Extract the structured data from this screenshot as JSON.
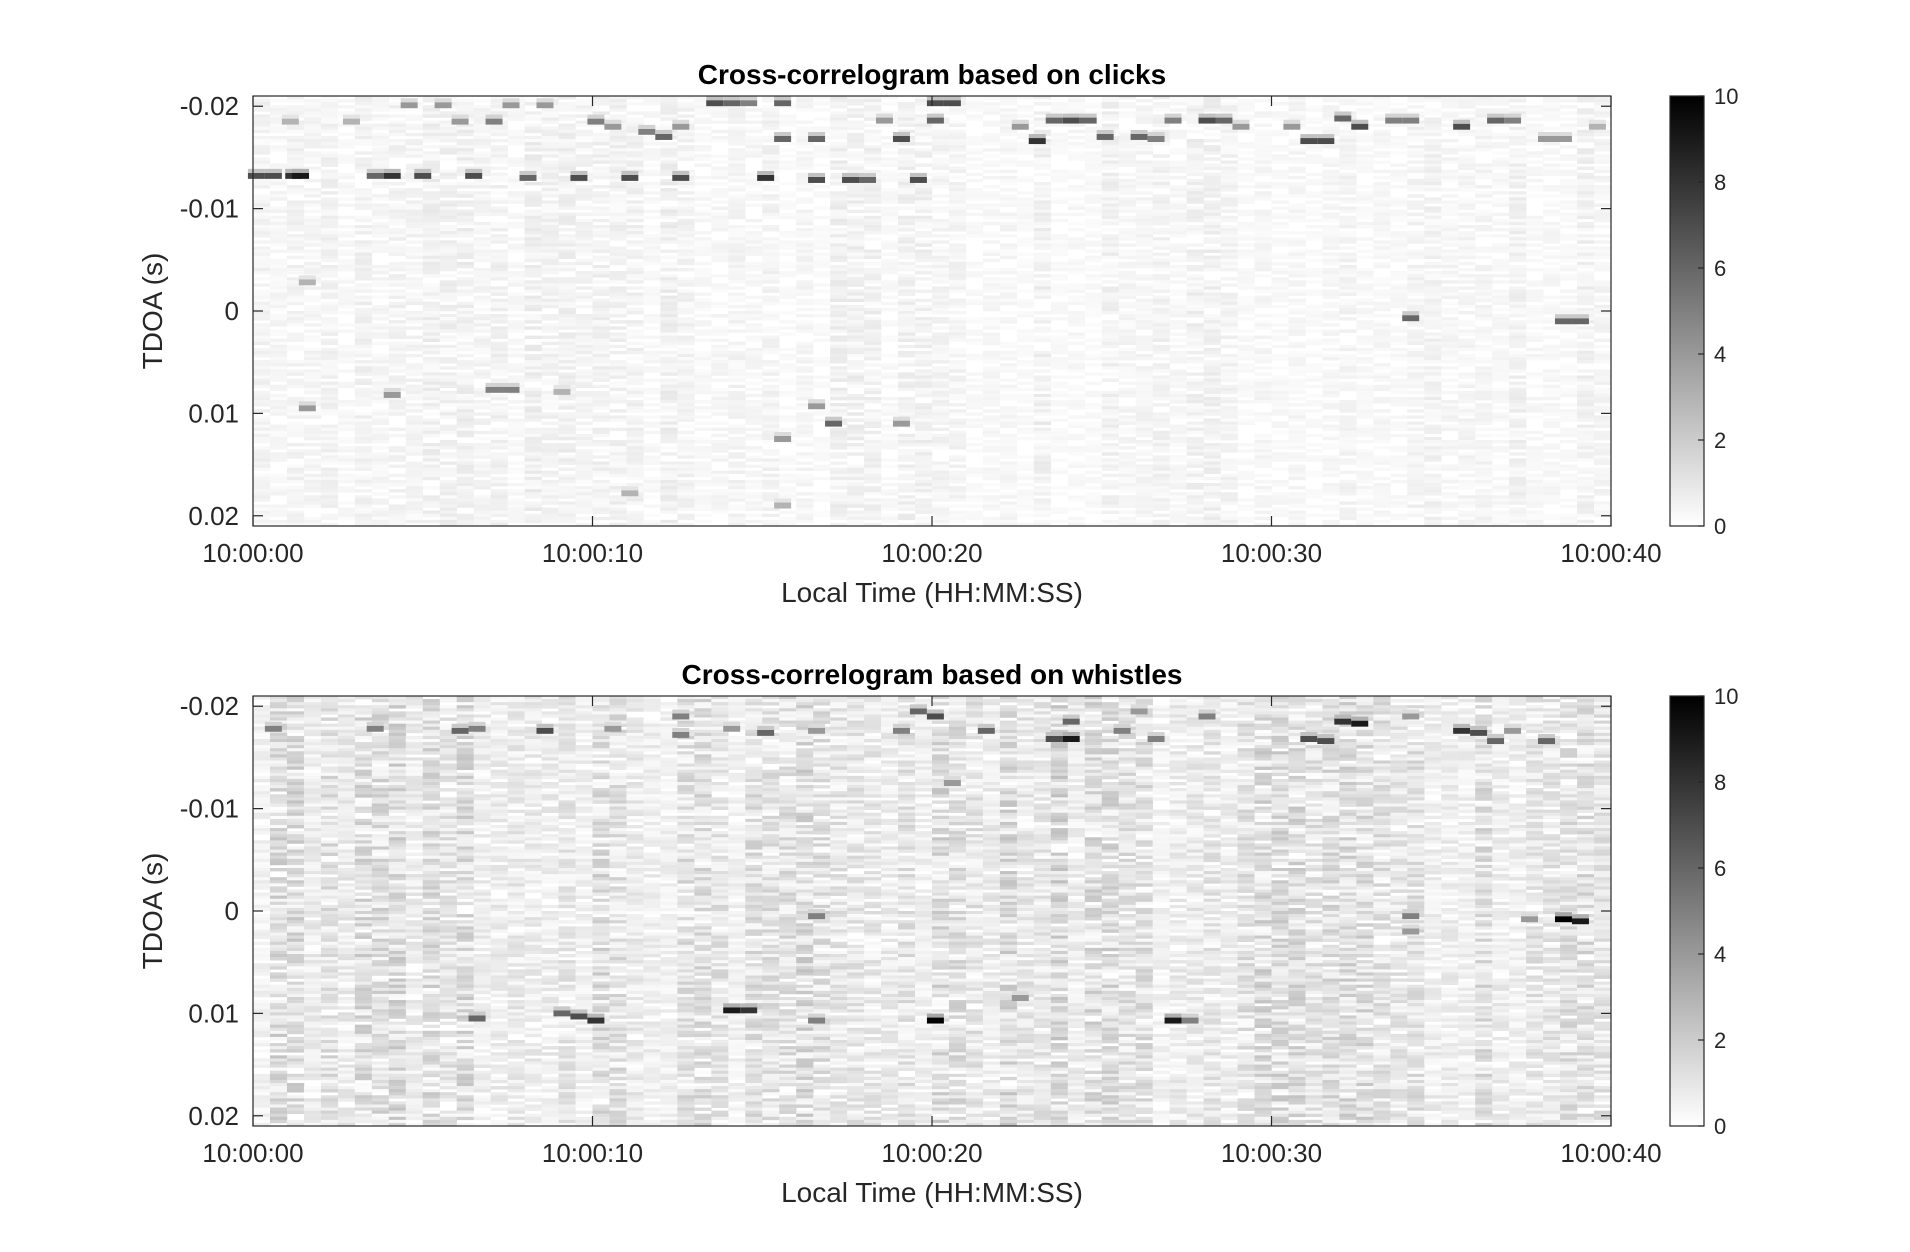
{
  "chart_data": [
    {
      "type": "heatmap",
      "title": "Cross-correlogram based on clicks",
      "xlabel": "Local Time (HH:MM:SS)",
      "ylabel": "TDOA (s)",
      "x_ticks": [
        "10:00:00",
        "10:00:10",
        "10:00:20",
        "10:00:30",
        "10:00:40"
      ],
      "x_range_seconds": [
        0,
        40
      ],
      "y_ticks": [
        "-0.02",
        "-0.01",
        "0",
        "0.01",
        "0.02"
      ],
      "ylim": [
        -0.021,
        0.021
      ],
      "y_reversed": true,
      "colormap": "gray-inverted",
      "colorbar": {
        "ticks": [
          "0",
          "2",
          "4",
          "6",
          "8",
          "10"
        ],
        "range": [
          0,
          10
        ]
      },
      "background_intensity": 0.4,
      "hotspots": [
        {
          "t": 0.1,
          "tdoa": -0.0132,
          "v": 7
        },
        {
          "t": 0.6,
          "tdoa": -0.0132,
          "v": 7
        },
        {
          "t": 1.2,
          "tdoa": -0.0132,
          "v": 8
        },
        {
          "t": 1.4,
          "tdoa": -0.0132,
          "v": 9
        },
        {
          "t": 3.6,
          "tdoa": -0.0132,
          "v": 6
        },
        {
          "t": 4.1,
          "tdoa": -0.0132,
          "v": 8
        },
        {
          "t": 5.0,
          "tdoa": -0.0132,
          "v": 7
        },
        {
          "t": 6.5,
          "tdoa": -0.0132,
          "v": 7
        },
        {
          "t": 8.1,
          "tdoa": -0.013,
          "v": 6
        },
        {
          "t": 9.6,
          "tdoa": -0.013,
          "v": 7
        },
        {
          "t": 11.1,
          "tdoa": -0.013,
          "v": 7
        },
        {
          "t": 12.6,
          "tdoa": -0.013,
          "v": 7
        },
        {
          "t": 15.1,
          "tdoa": -0.013,
          "v": 8
        },
        {
          "t": 16.6,
          "tdoa": -0.0128,
          "v": 7
        },
        {
          "t": 17.6,
          "tdoa": -0.0128,
          "v": 7
        },
        {
          "t": 18.1,
          "tdoa": -0.0128,
          "v": 6
        },
        {
          "t": 19.6,
          "tdoa": -0.0128,
          "v": 7
        },
        {
          "t": 1.1,
          "tdoa": -0.0185,
          "v": 3
        },
        {
          "t": 2.9,
          "tdoa": -0.0185,
          "v": 3
        },
        {
          "t": 4.6,
          "tdoa": -0.0201,
          "v": 4
        },
        {
          "t": 5.6,
          "tdoa": -0.0201,
          "v": 4
        },
        {
          "t": 6.1,
          "tdoa": -0.0185,
          "v": 4
        },
        {
          "t": 7.1,
          "tdoa": -0.0185,
          "v": 5
        },
        {
          "t": 7.6,
          "tdoa": -0.0201,
          "v": 4
        },
        {
          "t": 8.6,
          "tdoa": -0.0201,
          "v": 4
        },
        {
          "t": 10.1,
          "tdoa": -0.0185,
          "v": 5
        },
        {
          "t": 10.6,
          "tdoa": -0.018,
          "v": 4
        },
        {
          "t": 11.6,
          "tdoa": -0.0175,
          "v": 5
        },
        {
          "t": 12.1,
          "tdoa": -0.017,
          "v": 6
        },
        {
          "t": 12.6,
          "tdoa": -0.018,
          "v": 4
        },
        {
          "t": 13.6,
          "tdoa": -0.0203,
          "v": 7
        },
        {
          "t": 14.1,
          "tdoa": -0.0203,
          "v": 6
        },
        {
          "t": 14.6,
          "tdoa": -0.0203,
          "v": 5
        },
        {
          "t": 15.6,
          "tdoa": -0.0203,
          "v": 6
        },
        {
          "t": 15.6,
          "tdoa": -0.0168,
          "v": 6
        },
        {
          "t": 16.6,
          "tdoa": -0.0168,
          "v": 6
        },
        {
          "t": 18.6,
          "tdoa": -0.0186,
          "v": 4
        },
        {
          "t": 19.1,
          "tdoa": -0.0168,
          "v": 7
        },
        {
          "t": 20.1,
          "tdoa": -0.0203,
          "v": 7
        },
        {
          "t": 20.6,
          "tdoa": -0.0203,
          "v": 7
        },
        {
          "t": 20.1,
          "tdoa": -0.0186,
          "v": 6
        },
        {
          "t": 22.6,
          "tdoa": -0.018,
          "v": 4
        },
        {
          "t": 23.1,
          "tdoa": -0.0166,
          "v": 8
        },
        {
          "t": 23.6,
          "tdoa": -0.0186,
          "v": 6
        },
        {
          "t": 24.1,
          "tdoa": -0.0186,
          "v": 7
        },
        {
          "t": 24.6,
          "tdoa": -0.0186,
          "v": 6
        },
        {
          "t": 25.1,
          "tdoa": -0.017,
          "v": 6
        },
        {
          "t": 26.1,
          "tdoa": -0.017,
          "v": 6
        },
        {
          "t": 26.6,
          "tdoa": -0.0168,
          "v": 5
        },
        {
          "t": 27.1,
          "tdoa": -0.0186,
          "v": 5
        },
        {
          "t": 28.1,
          "tdoa": -0.0186,
          "v": 7
        },
        {
          "t": 28.6,
          "tdoa": -0.0186,
          "v": 6
        },
        {
          "t": 29.1,
          "tdoa": -0.018,
          "v": 4
        },
        {
          "t": 30.6,
          "tdoa": -0.018,
          "v": 4
        },
        {
          "t": 31.1,
          "tdoa": -0.0166,
          "v": 7
        },
        {
          "t": 31.6,
          "tdoa": -0.0166,
          "v": 7
        },
        {
          "t": 32.1,
          "tdoa": -0.0188,
          "v": 6
        },
        {
          "t": 32.6,
          "tdoa": -0.018,
          "v": 7
        },
        {
          "t": 33.6,
          "tdoa": -0.0186,
          "v": 5
        },
        {
          "t": 34.1,
          "tdoa": -0.0186,
          "v": 5
        },
        {
          "t": 35.6,
          "tdoa": -0.018,
          "v": 7
        },
        {
          "t": 36.6,
          "tdoa": -0.0186,
          "v": 6
        },
        {
          "t": 37.1,
          "tdoa": -0.0186,
          "v": 5
        },
        {
          "t": 38.1,
          "tdoa": -0.0168,
          "v": 4
        },
        {
          "t": 38.6,
          "tdoa": -0.0168,
          "v": 4
        },
        {
          "t": 39.6,
          "tdoa": -0.018,
          "v": 3
        },
        {
          "t": 1.6,
          "tdoa": -0.0028,
          "v": 3
        },
        {
          "t": 1.6,
          "tdoa": 0.0095,
          "v": 4
        },
        {
          "t": 4.1,
          "tdoa": 0.0082,
          "v": 4
        },
        {
          "t": 7.1,
          "tdoa": 0.0077,
          "v": 5
        },
        {
          "t": 7.6,
          "tdoa": 0.0077,
          "v": 5
        },
        {
          "t": 9.1,
          "tdoa": 0.0079,
          "v": 3
        },
        {
          "t": 11.1,
          "tdoa": 0.0178,
          "v": 3
        },
        {
          "t": 15.6,
          "tdoa": 0.0125,
          "v": 4
        },
        {
          "t": 16.6,
          "tdoa": 0.0093,
          "v": 4
        },
        {
          "t": 17.1,
          "tdoa": 0.011,
          "v": 6
        },
        {
          "t": 19.1,
          "tdoa": 0.011,
          "v": 4
        },
        {
          "t": 15.6,
          "tdoa": 0.019,
          "v": 3
        },
        {
          "t": 34.1,
          "tdoa": 0.0007,
          "v": 6
        },
        {
          "t": 38.6,
          "tdoa": 0.001,
          "v": 6
        },
        {
          "t": 39.1,
          "tdoa": 0.001,
          "v": 6
        }
      ]
    },
    {
      "type": "heatmap",
      "title": "Cross-correlogram based on whistles",
      "xlabel": "Local Time (HH:MM:SS)",
      "ylabel": "TDOA (s)",
      "x_ticks": [
        "10:00:00",
        "10:00:10",
        "10:00:20",
        "10:00:30",
        "10:00:40"
      ],
      "x_range_seconds": [
        0,
        40
      ],
      "y_ticks": [
        "-0.02",
        "-0.01",
        "0",
        "0.01",
        "0.02"
      ],
      "ylim": [
        -0.021,
        0.021
      ],
      "y_reversed": true,
      "colormap": "gray-inverted",
      "colorbar": {
        "ticks": [
          "0",
          "2",
          "4",
          "6",
          "8",
          "10"
        ],
        "range": [
          0,
          10
        ]
      },
      "background_intensity": 1.1,
      "hotspots": [
        {
          "t": 0.6,
          "tdoa": -0.0178,
          "v": 5
        },
        {
          "t": 3.6,
          "tdoa": -0.0178,
          "v": 5
        },
        {
          "t": 6.1,
          "tdoa": -0.0176,
          "v": 6
        },
        {
          "t": 6.6,
          "tdoa": -0.0178,
          "v": 5
        },
        {
          "t": 8.6,
          "tdoa": -0.0176,
          "v": 7
        },
        {
          "t": 10.6,
          "tdoa": -0.0178,
          "v": 4
        },
        {
          "t": 12.6,
          "tdoa": -0.019,
          "v": 5
        },
        {
          "t": 12.6,
          "tdoa": -0.0172,
          "v": 5
        },
        {
          "t": 14.1,
          "tdoa": -0.0178,
          "v": 4
        },
        {
          "t": 15.1,
          "tdoa": -0.0174,
          "v": 6
        },
        {
          "t": 16.6,
          "tdoa": -0.0176,
          "v": 4
        },
        {
          "t": 19.1,
          "tdoa": -0.0176,
          "v": 5
        },
        {
          "t": 19.6,
          "tdoa": -0.0195,
          "v": 6
        },
        {
          "t": 20.1,
          "tdoa": -0.019,
          "v": 7
        },
        {
          "t": 20.6,
          "tdoa": -0.0125,
          "v": 4
        },
        {
          "t": 21.6,
          "tdoa": -0.0176,
          "v": 6
        },
        {
          "t": 23.6,
          "tdoa": -0.0168,
          "v": 7
        },
        {
          "t": 24.1,
          "tdoa": -0.0168,
          "v": 9
        },
        {
          "t": 24.1,
          "tdoa": -0.0185,
          "v": 6
        },
        {
          "t": 25.6,
          "tdoa": -0.0176,
          "v": 5
        },
        {
          "t": 26.1,
          "tdoa": -0.0195,
          "v": 4
        },
        {
          "t": 26.6,
          "tdoa": -0.0168,
          "v": 5
        },
        {
          "t": 28.1,
          "tdoa": -0.019,
          "v": 5
        },
        {
          "t": 31.1,
          "tdoa": -0.0168,
          "v": 7
        },
        {
          "t": 31.6,
          "tdoa": -0.0166,
          "v": 7
        },
        {
          "t": 32.1,
          "tdoa": -0.0185,
          "v": 8
        },
        {
          "t": 32.6,
          "tdoa": -0.0183,
          "v": 9
        },
        {
          "t": 34.1,
          "tdoa": -0.019,
          "v": 4
        },
        {
          "t": 35.6,
          "tdoa": -0.0176,
          "v": 8
        },
        {
          "t": 36.1,
          "tdoa": -0.0174,
          "v": 7
        },
        {
          "t": 36.6,
          "tdoa": -0.0166,
          "v": 6
        },
        {
          "t": 37.1,
          "tdoa": -0.0176,
          "v": 4
        },
        {
          "t": 38.1,
          "tdoa": -0.0166,
          "v": 6
        },
        {
          "t": 6.6,
          "tdoa": 0.0105,
          "v": 6
        },
        {
          "t": 9.1,
          "tdoa": 0.01,
          "v": 6
        },
        {
          "t": 9.6,
          "tdoa": 0.0103,
          "v": 7
        },
        {
          "t": 10.1,
          "tdoa": 0.0107,
          "v": 8
        },
        {
          "t": 14.1,
          "tdoa": 0.0097,
          "v": 9
        },
        {
          "t": 14.6,
          "tdoa": 0.0097,
          "v": 8
        },
        {
          "t": 16.6,
          "tdoa": 0.0107,
          "v": 5
        },
        {
          "t": 16.6,
          "tdoa": 0.0005,
          "v": 5
        },
        {
          "t": 20.1,
          "tdoa": 0.0107,
          "v": 10
        },
        {
          "t": 22.6,
          "tdoa": 0.0085,
          "v": 4
        },
        {
          "t": 27.1,
          "tdoa": 0.0107,
          "v": 9
        },
        {
          "t": 27.6,
          "tdoa": 0.0107,
          "v": 5
        },
        {
          "t": 34.1,
          "tdoa": 0.0005,
          "v": 5
        },
        {
          "t": 34.1,
          "tdoa": 0.002,
          "v": 4
        },
        {
          "t": 37.6,
          "tdoa": 0.0008,
          "v": 4
        },
        {
          "t": 38.6,
          "tdoa": 0.0008,
          "v": 10
        },
        {
          "t": 39.1,
          "tdoa": 0.001,
          "v": 9
        }
      ]
    }
  ]
}
